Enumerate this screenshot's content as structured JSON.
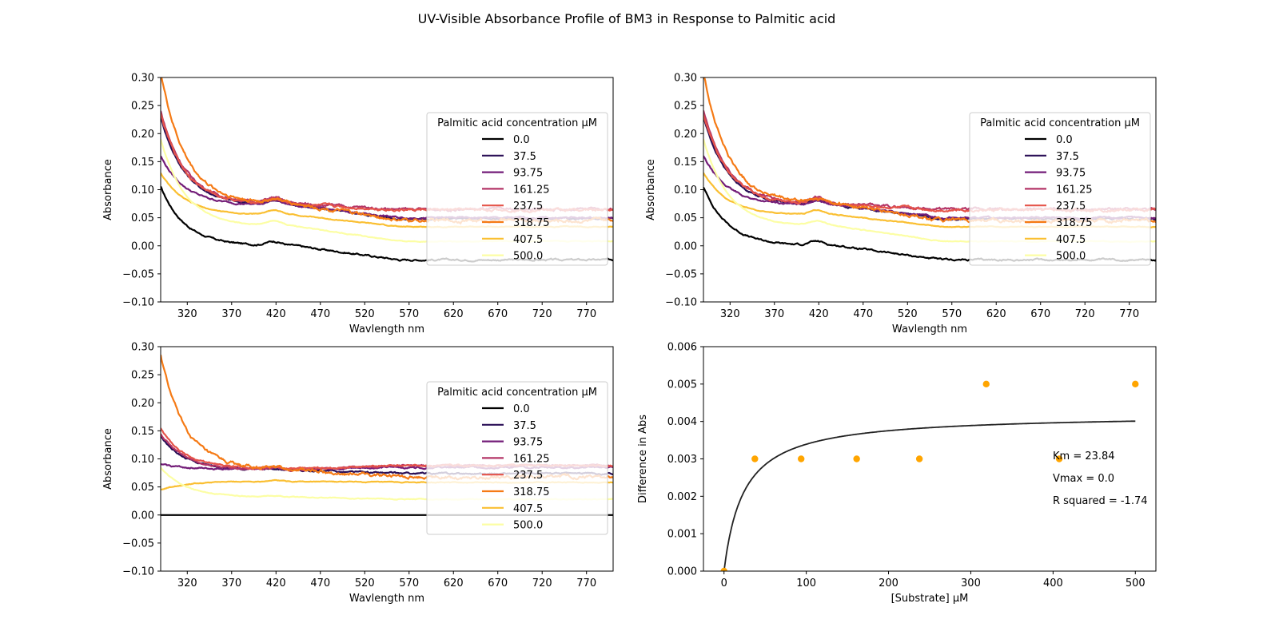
{
  "figure": {
    "suptitle": "UV-Visible Absorbance Profile of BM3 in Response to Palmitic acid"
  },
  "colors": {
    "series": [
      "#000000",
      "#2a0f56",
      "#731d78",
      "#b43567",
      "#e5544a",
      "#f57a15",
      "#fabf32",
      "#fcfea4"
    ],
    "fit": "#222222",
    "points": "#ffa500"
  },
  "chart_data": [
    {
      "type": "line",
      "xlabel": "Wavlength nm",
      "ylabel": "Absorbance",
      "xlim": [
        290,
        800
      ],
      "ylim": [
        -0.1,
        0.3
      ],
      "xticks": [
        320,
        370,
        420,
        470,
        520,
        570,
        620,
        670,
        720,
        770
      ],
      "yticks": [
        -0.1,
        -0.05,
        0.0,
        0.05,
        0.1,
        0.15,
        0.2,
        0.25,
        0.3
      ],
      "legend": {
        "title": "Palmitic acid concentration µM",
        "placement": "center-right"
      },
      "series": [
        {
          "name": "0.0",
          "profile": {
            "start": 0.105,
            "hump": 0.007,
            "shoulder_level": 0.0,
            "tail": -0.025,
            "noise": 0.002
          }
        },
        {
          "name": "37.5",
          "profile": {
            "start": 0.23,
            "hump": 0.008,
            "shoulder_level": 0.072,
            "tail": 0.048,
            "noise": 0.002
          }
        },
        {
          "name": "93.75",
          "profile": {
            "start": 0.16,
            "hump": 0.008,
            "shoulder_level": 0.072,
            "tail": 0.05,
            "noise": 0.002
          }
        },
        {
          "name": "161.25",
          "profile": {
            "start": 0.24,
            "hump": 0.009,
            "shoulder_level": 0.075,
            "tail": 0.065,
            "noise": 0.003
          }
        },
        {
          "name": "237.5",
          "profile": {
            "start": 0.235,
            "hump": 0.008,
            "shoulder_level": 0.074,
            "tail": 0.064,
            "noise": 0.003
          }
        },
        {
          "name": "318.75",
          "profile": {
            "start": 0.31,
            "hump": 0.006,
            "shoulder_level": 0.075,
            "tail": 0.045,
            "noise": 0.004
          }
        },
        {
          "name": "407.5",
          "profile": {
            "start": 0.13,
            "hump": 0.008,
            "shoulder_level": 0.055,
            "tail": 0.034,
            "noise": 0.001
          }
        },
        {
          "name": "500.0",
          "profile": {
            "start": 0.19,
            "hump": 0.008,
            "shoulder_level": 0.035,
            "tail": 0.008,
            "noise": 0.001
          }
        }
      ]
    },
    {
      "type": "line",
      "xlabel": "Wavlength nm",
      "ylabel": "Absorbance",
      "xlim": [
        290,
        800
      ],
      "ylim": [
        -0.1,
        0.3
      ],
      "xticks": [
        320,
        370,
        420,
        470,
        520,
        570,
        620,
        670,
        720,
        770
      ],
      "yticks": [
        -0.1,
        -0.05,
        0.0,
        0.05,
        0.1,
        0.15,
        0.2,
        0.25,
        0.3
      ],
      "legend": {
        "title": "Palmitic acid concentration µM",
        "placement": "center-right"
      },
      "series": [
        {
          "name": "0.0",
          "profile": {
            "start": 0.105,
            "hump": 0.007,
            "shoulder_level": 0.0,
            "tail": -0.025,
            "noise": 0.002
          }
        },
        {
          "name": "37.5",
          "profile": {
            "start": 0.23,
            "hump": 0.008,
            "shoulder_level": 0.072,
            "tail": 0.048,
            "noise": 0.002
          }
        },
        {
          "name": "93.75",
          "profile": {
            "start": 0.16,
            "hump": 0.008,
            "shoulder_level": 0.072,
            "tail": 0.05,
            "noise": 0.002
          }
        },
        {
          "name": "161.25",
          "profile": {
            "start": 0.24,
            "hump": 0.009,
            "shoulder_level": 0.075,
            "tail": 0.065,
            "noise": 0.003
          }
        },
        {
          "name": "237.5",
          "profile": {
            "start": 0.235,
            "hump": 0.008,
            "shoulder_level": 0.074,
            "tail": 0.064,
            "noise": 0.003
          }
        },
        {
          "name": "318.75",
          "profile": {
            "start": 0.31,
            "hump": 0.006,
            "shoulder_level": 0.075,
            "tail": 0.045,
            "noise": 0.004
          }
        },
        {
          "name": "407.5",
          "profile": {
            "start": 0.13,
            "hump": 0.008,
            "shoulder_level": 0.055,
            "tail": 0.034,
            "noise": 0.001
          }
        },
        {
          "name": "500.0",
          "profile": {
            "start": 0.19,
            "hump": 0.008,
            "shoulder_level": 0.035,
            "tail": 0.008,
            "noise": 0.001
          }
        }
      ]
    },
    {
      "type": "line",
      "xlabel": "Wavlength nm",
      "ylabel": "Absorbance",
      "xlim": [
        290,
        800
      ],
      "ylim": [
        -0.1,
        0.3
      ],
      "xticks": [
        320,
        370,
        420,
        470,
        520,
        570,
        620,
        670,
        720,
        770
      ],
      "yticks": [
        -0.1,
        -0.05,
        0.0,
        0.05,
        0.1,
        0.15,
        0.2,
        0.25,
        0.3
      ],
      "legend": {
        "title": "Palmitic acid concentration µM",
        "placement": "center-right"
      },
      "series": [
        {
          "name": "0.0",
          "profile": {
            "start": 0.0,
            "hump": 0.0,
            "shoulder_level": 0.0,
            "tail": 0.0,
            "noise": 0.0
          }
        },
        {
          "name": "37.5",
          "profile": {
            "start": 0.14,
            "hump": 0.003,
            "shoulder_level": 0.08,
            "tail": 0.074,
            "noise": 0.002
          }
        },
        {
          "name": "93.75",
          "profile": {
            "start": 0.09,
            "hump": 0.003,
            "shoulder_level": 0.082,
            "tail": 0.085,
            "noise": 0.002
          }
        },
        {
          "name": "161.25",
          "profile": {
            "start": 0.145,
            "hump": 0.003,
            "shoulder_level": 0.08,
            "tail": 0.088,
            "noise": 0.002
          }
        },
        {
          "name": "237.5",
          "profile": {
            "start": 0.155,
            "hump": 0.003,
            "shoulder_level": 0.082,
            "tail": 0.088,
            "noise": 0.002
          }
        },
        {
          "name": "318.75",
          "profile": {
            "start": 0.285,
            "hump": 0.003,
            "shoulder_level": 0.08,
            "tail": 0.068,
            "noise": 0.004
          }
        },
        {
          "name": "407.5",
          "profile": {
            "start": 0.045,
            "hump": 0.002,
            "shoulder_level": 0.06,
            "tail": 0.058,
            "noise": 0.001
          }
        },
        {
          "name": "500.0",
          "profile": {
            "start": 0.085,
            "hump": 0.002,
            "shoulder_level": 0.032,
            "tail": 0.028,
            "noise": 0.001
          }
        }
      ]
    },
    {
      "type": "scatter",
      "xlabel": "[Substrate] µM",
      "ylabel": "Difference in Abs",
      "xlim": [
        -25,
        525
      ],
      "ylim": [
        0,
        0.006
      ],
      "xticks": [
        0,
        100,
        200,
        300,
        400,
        500
      ],
      "yticks": [
        0.0,
        0.001,
        0.002,
        0.003,
        0.004,
        0.005,
        0.006
      ],
      "points": [
        {
          "x": 0,
          "y": 0.0
        },
        {
          "x": 37.5,
          "y": 0.003
        },
        {
          "x": 93.75,
          "y": 0.003
        },
        {
          "x": 161.25,
          "y": 0.003
        },
        {
          "x": 237.5,
          "y": 0.003
        },
        {
          "x": 318.75,
          "y": 0.005
        },
        {
          "x": 407.5,
          "y": 0.003
        },
        {
          "x": 500.0,
          "y": 0.005
        }
      ],
      "fit": {
        "model": "michaelis-menten",
        "vmax": 0.0042,
        "km": 23.84
      },
      "annotations": [
        "Km = 23.84",
        "Vmax = 0.0",
        "R squared = -1.74"
      ]
    }
  ]
}
